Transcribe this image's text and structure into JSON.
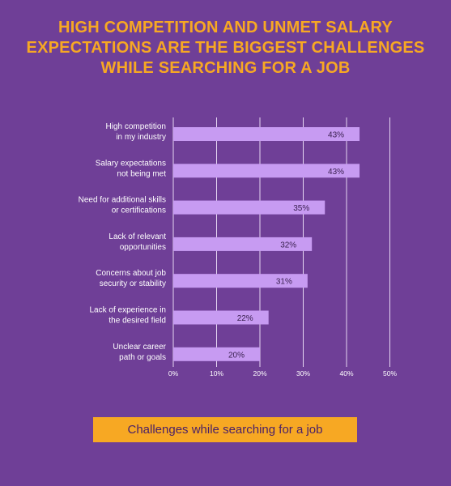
{
  "title_lines": [
    "HIGH COMPETITION AND UNMET SALARY",
    "EXPECTATIONS ARE THE BIGGEST CHALLENGES",
    "WHILE SEARCHING FOR A JOB"
  ],
  "colors": {
    "background": "#6f3f97",
    "title": "#f7a823",
    "bar": "#c79bf2",
    "grid": "#e6d6f2",
    "label": "#ffffff",
    "footer_bg": "#f7a823",
    "footer_text": "#4a2168"
  },
  "chart_data": {
    "type": "bar",
    "orientation": "horizontal",
    "categories": [
      [
        "High competition",
        "in my industry"
      ],
      [
        "Salary expectations",
        "not being met"
      ],
      [
        "Need for additional skills",
        "or certifications"
      ],
      [
        "Lack of relevant",
        "opportunities"
      ],
      [
        "Concerns about job",
        "security or stability"
      ],
      [
        "Lack of experience in",
        "the desired field"
      ],
      [
        "Unclear career",
        "path or goals"
      ]
    ],
    "values": [
      43,
      43,
      35,
      32,
      31,
      22,
      20
    ],
    "value_labels": [
      "43%",
      "43%",
      "35%",
      "32%",
      "31%",
      "22%",
      "20%"
    ],
    "x_ticks": [
      "0%",
      "10%",
      "20%",
      "30%",
      "40%",
      "50%"
    ],
    "xlim": [
      0,
      50
    ],
    "grid": true,
    "legend": "none"
  },
  "footer_label": "Challenges while searching for a job"
}
